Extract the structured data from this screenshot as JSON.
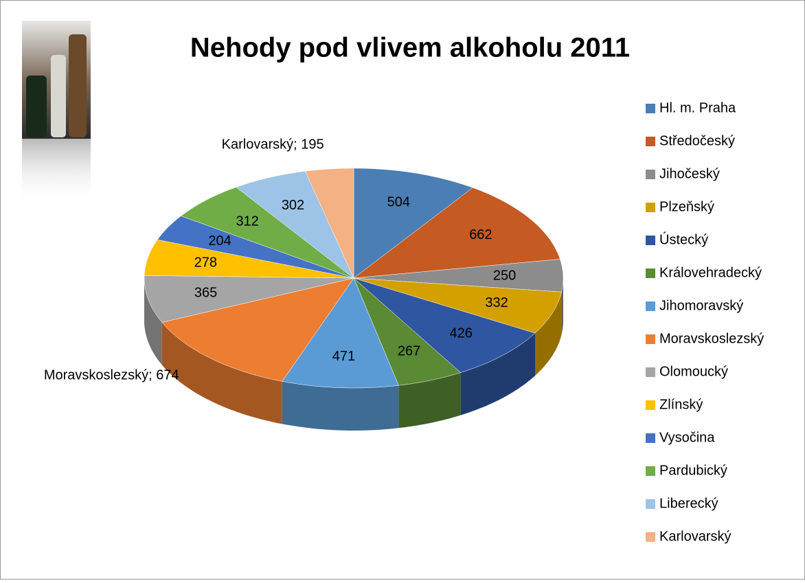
{
  "chart_data": {
    "type": "pie3d",
    "title": "Nehody pod vlivem alkoholu 2011",
    "categories": [
      "Hl. m. Praha",
      "Středočeský",
      "Jihočeský",
      "Plzeňský",
      "Ústecký",
      "Královehradecký",
      "Jihomoravský",
      "Moravskoslezský",
      "Olomoucký",
      "Zlínský",
      "Vysočina",
      "Pardubický",
      "Liberecký",
      "Karlovarský"
    ],
    "values": [
      504,
      662,
      250,
      332,
      426,
      267,
      471,
      674,
      365,
      278,
      204,
      312,
      302,
      195
    ],
    "value_labels": [
      "504",
      "662",
      "250",
      "332",
      "426",
      "267",
      "471",
      "Moravskoslezský; 674",
      "365",
      "278",
      "204",
      "312",
      "302",
      "Karlovarský; 195"
    ],
    "colors": [
      "#4a7eb5",
      "#c55a22",
      "#8c8c8c",
      "#d4a000",
      "#2f56a0",
      "#5a8a34",
      "#5b9bd5",
      "#ed7d31",
      "#a5a5a5",
      "#ffc000",
      "#4472c4",
      "#70ad47",
      "#9dc3e6",
      "#f4b183"
    ],
    "legend": "right"
  }
}
